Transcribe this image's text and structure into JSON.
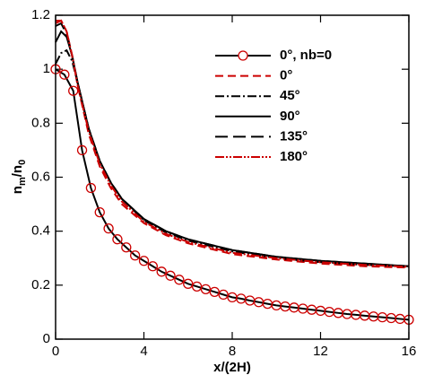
{
  "chart_data": {
    "type": "line",
    "xlabel": "x/(2H)",
    "ylabel": [
      "n",
      "m",
      "/n",
      "0"
    ],
    "xlim": [
      0,
      16
    ],
    "ylim": [
      0,
      1.2
    ],
    "xticks": [
      0,
      4,
      8,
      12,
      16
    ],
    "yticks": [
      0,
      0.2,
      0.4,
      0.6,
      0.8,
      1,
      1.2
    ],
    "legend": "upper right",
    "series": [
      {
        "name": "0°, nb=0",
        "color": "#000000",
        "marker": "circle",
        "marker_color": "#cc0000",
        "dash": "none",
        "x": [
          0,
          0.4,
          0.8,
          1.2,
          1.6,
          2,
          2.4,
          2.8,
          3.2,
          3.6,
          4,
          4.4,
          4.8,
          5.2,
          5.6,
          6,
          6.4,
          6.8,
          7.2,
          7.6,
          8,
          8.4,
          8.8,
          9.2,
          9.6,
          10,
          10.4,
          10.8,
          11.2,
          11.6,
          12,
          12.4,
          12.8,
          13.2,
          13.6,
          14,
          14.4,
          14.8,
          15.2,
          15.6,
          16
        ],
        "values": [
          1.0,
          0.98,
          0.92,
          0.7,
          0.56,
          0.47,
          0.41,
          0.37,
          0.34,
          0.31,
          0.29,
          0.27,
          0.25,
          0.235,
          0.22,
          0.205,
          0.195,
          0.185,
          0.175,
          0.165,
          0.155,
          0.15,
          0.143,
          0.137,
          0.131,
          0.125,
          0.121,
          0.117,
          0.113,
          0.109,
          0.105,
          0.101,
          0.097,
          0.093,
          0.09,
          0.087,
          0.084,
          0.081,
          0.078,
          0.075,
          0.072
        ]
      },
      {
        "name": "0°",
        "color": "#cc0000",
        "dash": "9,5",
        "x": [
          0,
          0.25,
          0.5,
          0.75,
          1,
          1.5,
          2,
          2.5,
          3,
          4,
          5,
          6,
          8,
          10,
          12,
          14,
          16
        ],
        "values": [
          1.17,
          1.18,
          1.14,
          1.05,
          0.94,
          0.76,
          0.64,
          0.56,
          0.5,
          0.43,
          0.385,
          0.355,
          0.315,
          0.295,
          0.28,
          0.27,
          0.265
        ]
      },
      {
        "name": "45°",
        "color": "#000000",
        "dash": "10,3,2,3",
        "x": [
          0,
          0.25,
          0.5,
          0.75,
          1,
          1.5,
          2,
          2.5,
          3,
          4,
          5,
          6,
          8,
          10,
          12,
          14,
          16
        ],
        "values": [
          1.02,
          1.06,
          1.07,
          1.03,
          0.95,
          0.78,
          0.66,
          0.58,
          0.52,
          0.44,
          0.395,
          0.365,
          0.325,
          0.3,
          0.285,
          0.275,
          0.27
        ]
      },
      {
        "name": "90°",
        "color": "#000000",
        "dash": "none",
        "x": [
          0,
          0.25,
          0.5,
          0.75,
          1,
          1.5,
          2,
          2.5,
          3,
          4,
          5,
          6,
          8,
          10,
          12,
          14,
          16
        ],
        "values": [
          1.1,
          1.14,
          1.12,
          1.05,
          0.95,
          0.78,
          0.66,
          0.58,
          0.52,
          0.445,
          0.4,
          0.37,
          0.33,
          0.305,
          0.29,
          0.28,
          0.27
        ]
      },
      {
        "name": "135°",
        "color": "#000000",
        "dash": "14,6",
        "x": [
          0,
          0.25,
          0.5,
          0.75,
          1,
          1.5,
          2,
          2.5,
          3,
          4,
          5,
          6,
          8,
          10,
          12,
          14,
          16
        ],
        "values": [
          1.16,
          1.17,
          1.13,
          1.05,
          0.95,
          0.78,
          0.66,
          0.58,
          0.52,
          0.445,
          0.4,
          0.37,
          0.33,
          0.305,
          0.29,
          0.28,
          0.27
        ]
      },
      {
        "name": "180°",
        "color": "#cc0000",
        "dash": "10,2,2,2,2,2",
        "x": [
          0,
          0.25,
          0.5,
          0.75,
          1,
          1.5,
          2,
          2.5,
          3,
          4,
          5,
          6,
          8,
          10,
          12,
          14,
          16
        ],
        "values": [
          1.18,
          1.18,
          1.14,
          1.05,
          0.94,
          0.77,
          0.65,
          0.57,
          0.51,
          0.435,
          0.39,
          0.36,
          0.32,
          0.3,
          0.285,
          0.275,
          0.268
        ]
      }
    ]
  }
}
